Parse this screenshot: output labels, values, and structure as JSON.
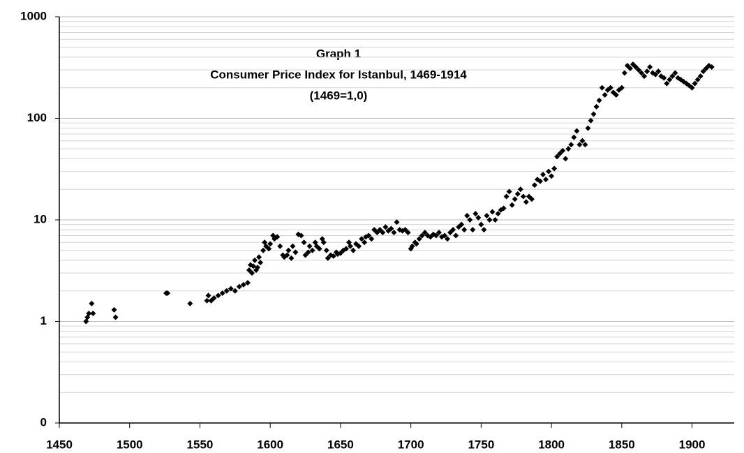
{
  "chart_data": {
    "type": "scatter",
    "title": "Graph  1",
    "subtitle": "Consumer Price Index for Istanbul, 1469-1914",
    "note": "(1469=1,0)",
    "log_y": true,
    "grid": true,
    "minor_grid": true,
    "color": "#000000",
    "xlim": [
      1450,
      1930
    ],
    "xticks": [
      1450,
      1500,
      1550,
      1600,
      1650,
      1700,
      1750,
      1800,
      1850,
      1900
    ],
    "ylim": [
      0.1,
      1000
    ],
    "yticks": [
      {
        "value": 0.1,
        "label": "0"
      },
      1,
      10,
      100,
      1000
    ],
    "x": [
      1469,
      1470,
      1471,
      1473,
      1474,
      1489,
      1490,
      1526,
      1527,
      1543,
      1555,
      1556,
      1558,
      1560,
      1563,
      1566,
      1569,
      1572,
      1575,
      1578,
      1581,
      1584,
      1585,
      1586,
      1587,
      1588,
      1589,
      1590,
      1591,
      1592,
      1593,
      1595,
      1596,
      1597,
      1599,
      1600,
      1602,
      1603,
      1605,
      1607,
      1609,
      1610,
      1612,
      1613,
      1615,
      1616,
      1618,
      1620,
      1622,
      1624,
      1625,
      1627,
      1628,
      1630,
      1632,
      1633,
      1635,
      1637,
      1638,
      1640,
      1641,
      1643,
      1645,
      1647,
      1648,
      1650,
      1652,
      1654,
      1656,
      1657,
      1659,
      1661,
      1663,
      1665,
      1667,
      1668,
      1670,
      1672,
      1674,
      1676,
      1678,
      1680,
      1682,
      1684,
      1686,
      1688,
      1690,
      1692,
      1694,
      1696,
      1698,
      1700,
      1701,
      1703,
      1704,
      1706,
      1708,
      1710,
      1712,
      1714,
      1716,
      1718,
      1720,
      1722,
      1724,
      1726,
      1728,
      1730,
      1732,
      1734,
      1736,
      1738,
      1740,
      1742,
      1744,
      1746,
      1748,
      1750,
      1752,
      1754,
      1756,
      1758,
      1760,
      1762,
      1764,
      1766,
      1768,
      1770,
      1772,
      1774,
      1776,
      1778,
      1780,
      1782,
      1784,
      1786,
      1788,
      1790,
      1792,
      1794,
      1796,
      1798,
      1800,
      1802,
      1804,
      1806,
      1808,
      1810,
      1812,
      1814,
      1816,
      1818,
      1820,
      1822,
      1824,
      1826,
      1828,
      1830,
      1832,
      1834,
      1836,
      1838,
      1840,
      1842,
      1844,
      1846,
      1848,
      1850,
      1852,
      1854,
      1856,
      1858,
      1860,
      1862,
      1864,
      1866,
      1868,
      1870,
      1872,
      1874,
      1876,
      1878,
      1880,
      1882,
      1884,
      1886,
      1888,
      1890,
      1892,
      1894,
      1896,
      1898,
      1900,
      1902,
      1904,
      1906,
      1908,
      1910,
      1912,
      1914
    ],
    "values": [
      1.0,
      1.1,
      1.2,
      1.5,
      1.2,
      1.3,
      1.1,
      1.9,
      1.9,
      1.5,
      1.6,
      1.8,
      1.6,
      1.7,
      1.8,
      1.9,
      2.0,
      2.1,
      2.0,
      2.2,
      2.3,
      2.4,
      3.2,
      3.6,
      3.0,
      3.5,
      4.0,
      3.2,
      3.4,
      4.3,
      3.8,
      5.0,
      6.0,
      5.5,
      5.2,
      5.8,
      7.0,
      6.5,
      6.8,
      5.5,
      4.5,
      4.3,
      4.5,
      5.0,
      4.2,
      5.5,
      4.8,
      7.2,
      7.0,
      6.0,
      4.5,
      4.8,
      5.5,
      5.0,
      6.0,
      5.5,
      5.2,
      6.5,
      6.0,
      5.0,
      4.2,
      4.5,
      4.4,
      4.8,
      4.6,
      4.7,
      5.0,
      5.2,
      6.0,
      5.5,
      5.0,
      5.8,
      5.5,
      6.5,
      6.0,
      6.8,
      7.0,
      6.5,
      8.0,
      7.5,
      8.0,
      7.5,
      8.5,
      7.8,
      8.2,
      7.5,
      9.5,
      8.0,
      7.8,
      8.0,
      7.5,
      5.2,
      5.5,
      6.0,
      5.8,
      6.5,
      7.0,
      7.5,
      7.0,
      6.8,
      7.2,
      7.0,
      7.5,
      6.8,
      7.0,
      6.5,
      7.5,
      8.0,
      7.0,
      8.5,
      9.0,
      8.0,
      11.0,
      10.0,
      8.0,
      11.5,
      10.5,
      9.0,
      8.0,
      11.0,
      10.0,
      12.0,
      10.0,
      11.5,
      12.5,
      13.0,
      17.0,
      19.0,
      14.0,
      16.0,
      18.0,
      20.0,
      17.0,
      15.0,
      17.0,
      16.0,
      22.0,
      25.0,
      24.0,
      28.0,
      25.0,
      30.0,
      27.0,
      32.0,
      42.0,
      45.0,
      48.0,
      40.0,
      50.0,
      55.0,
      65.0,
      75.0,
      55.0,
      60.0,
      55.0,
      80.0,
      95.0,
      110.0,
      130.0,
      150.0,
      200.0,
      170.0,
      190.0,
      200.0,
      180.0,
      170.0,
      190.0,
      200.0,
      280.0,
      330.0,
      310.0,
      340.0,
      320.0,
      300.0,
      280.0,
      260.0,
      290.0,
      320.0,
      280.0,
      270.0,
      290.0,
      260.0,
      250.0,
      220.0,
      240.0,
      260.0,
      280.0,
      250.0,
      240.0,
      230.0,
      220.0,
      210.0,
      200.0,
      220.0,
      240.0,
      260.0,
      290.0,
      310.0,
      330.0,
      320.0
    ]
  }
}
